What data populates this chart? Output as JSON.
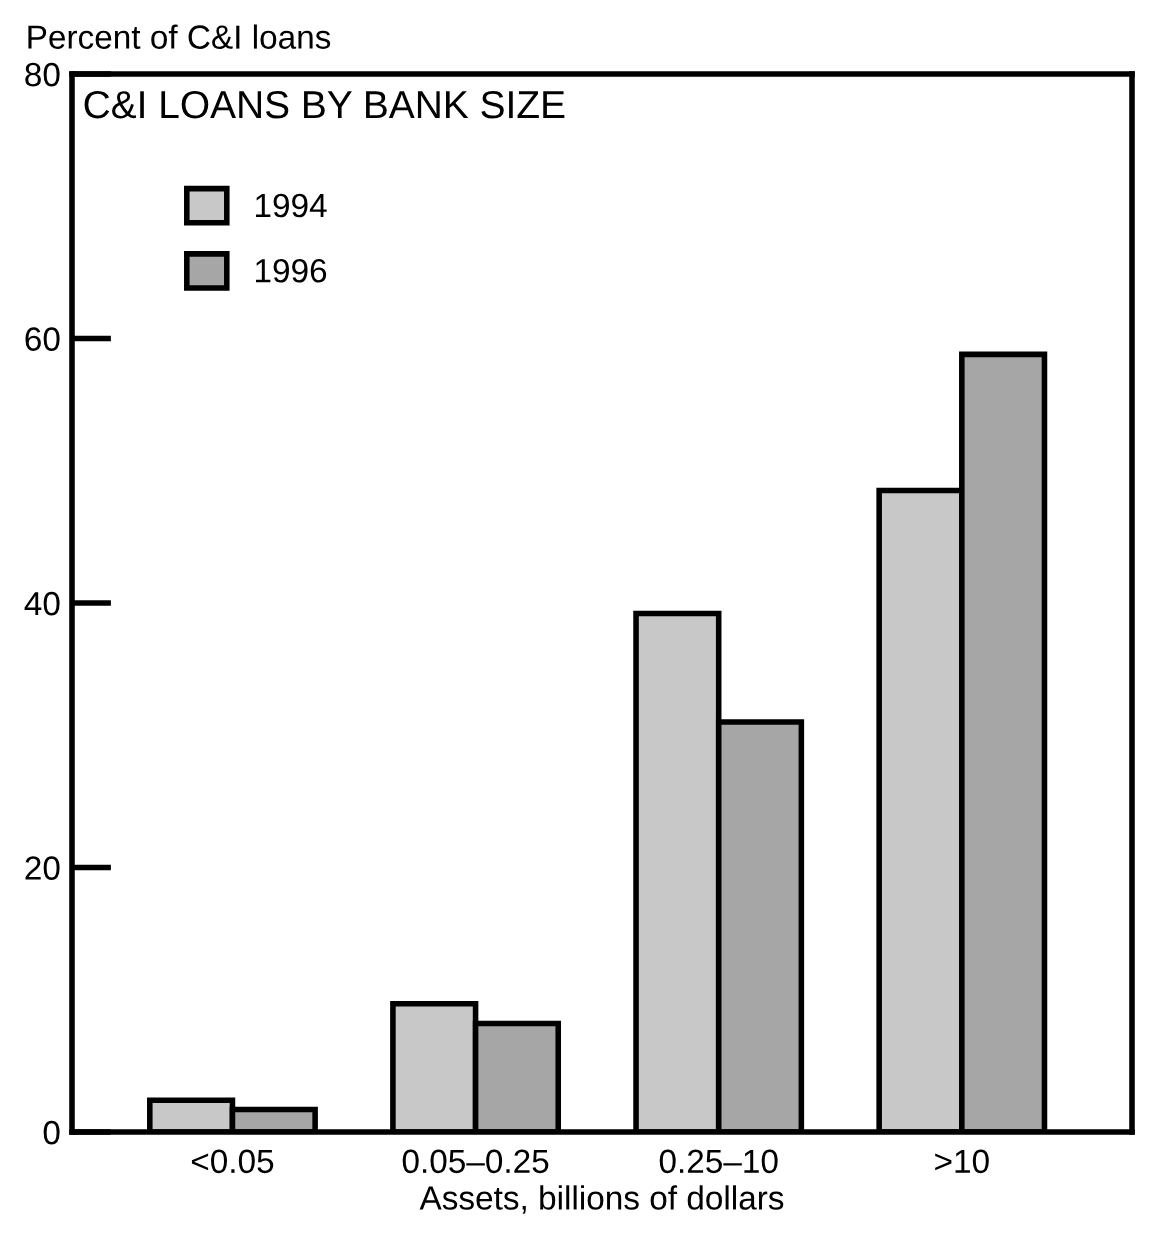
{
  "chart_data": {
    "type": "bar",
    "title": "C&I LOANS BY BANK SIZE",
    "ylabel": "Percent of C&I loans",
    "xlabel": "Assets, billions of dollars",
    "categories": [
      "<0.05",
      "0.05–0.25",
      "0.25–10",
      ">10"
    ],
    "series": [
      {
        "name": "1994",
        "color": "#c8c8c8",
        "values": [
          2.4,
          9.7,
          39.2,
          48.5
        ]
      },
      {
        "name": "1996",
        "color": "#a6a6a6",
        "values": [
          1.7,
          8.2,
          31.0,
          58.8
        ]
      }
    ],
    "ylim": [
      0,
      80
    ],
    "yticks": [
      0,
      20,
      40,
      60,
      80
    ],
    "grid": false,
    "legend": "top left"
  }
}
